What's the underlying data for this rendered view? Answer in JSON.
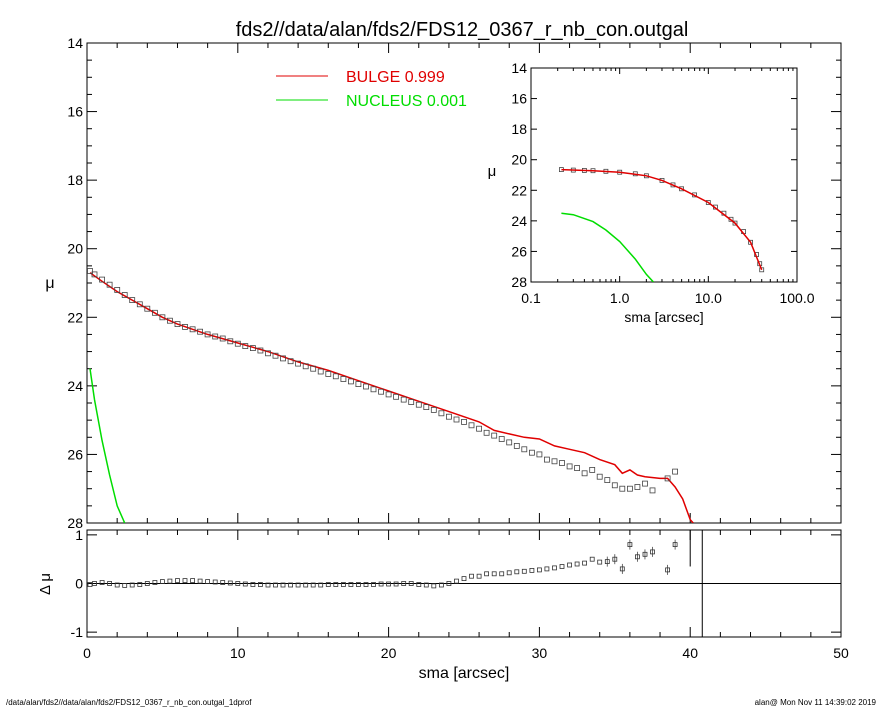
{
  "chart_data": {
    "type": "scatter",
    "title": "fds2//data/alan/fds2/FDS12_0367_r_nb_con.outgal",
    "footer_left": "/data/alan/fds2//data/alan/fds2/FDS12_0367_r_nb_con.outgal_1dprof",
    "footer_right": "alan@  Mon Nov 11 14:39:02 2019",
    "colors": {
      "bulge": "#e00000",
      "nucleus": "#00dd00",
      "points": "#444444",
      "axes": "#000000"
    },
    "main_panel": {
      "xlabel": "",
      "ylabel": "μ",
      "xlim": [
        0,
        50
      ],
      "ylim": [
        28,
        14
      ],
      "yticks": [
        14,
        16,
        18,
        20,
        22,
        24,
        26,
        28
      ],
      "legend": {
        "placement": "top-center",
        "entries": [
          {
            "label": "BULGE  0.999",
            "color": "#e00000"
          },
          {
            "label": "NUCLEUS  0.001",
            "color": "#00dd00"
          }
        ]
      },
      "series": [
        {
          "name": "BULGE  0.999",
          "kind": "line",
          "color": "#e00000",
          "x": [
            0.2,
            1,
            2,
            3,
            4,
            5,
            6,
            7,
            8,
            10,
            12,
            14,
            16,
            18,
            20,
            22,
            24,
            26,
            27,
            28,
            29,
            30,
            31,
            32,
            33,
            34,
            35,
            35.5,
            36,
            36.5,
            37,
            38,
            38.5,
            39,
            39.5,
            40,
            40.2
          ],
          "y": [
            20.7,
            20.95,
            21.25,
            21.5,
            21.75,
            22.0,
            22.2,
            22.35,
            22.5,
            22.75,
            23.0,
            23.3,
            23.55,
            23.85,
            24.15,
            24.45,
            24.75,
            25.05,
            25.3,
            25.4,
            25.5,
            25.55,
            25.75,
            25.85,
            25.95,
            26.15,
            26.3,
            26.55,
            26.45,
            26.6,
            26.65,
            26.7,
            26.7,
            26.95,
            27.3,
            27.9,
            28.0
          ]
        },
        {
          "name": "NUCLEUS  0.001",
          "kind": "line",
          "color": "#00dd00",
          "x": [
            0.2,
            0.5,
            1.0,
            1.5,
            2.0,
            2.5
          ],
          "y": [
            23.5,
            24.4,
            25.6,
            26.6,
            27.5,
            28.0
          ]
        },
        {
          "name": "",
          "kind": "points",
          "color": "#444444",
          "x": [
            0.2,
            0.5,
            1,
            1.5,
            2,
            2.5,
            3,
            3.5,
            4,
            4.5,
            5,
            5.5,
            6,
            6.5,
            7,
            7.5,
            8,
            8.5,
            9,
            9.5,
            10,
            10.5,
            11,
            11.5,
            12,
            12.5,
            13,
            13.5,
            14,
            14.5,
            15,
            15.5,
            16,
            16.5,
            17,
            17.5,
            18,
            18.5,
            19,
            19.5,
            20,
            20.5,
            21,
            21.5,
            22,
            22.5,
            23,
            23.5,
            24,
            24.5,
            25,
            25.5,
            26,
            26.5,
            27,
            27.5,
            28,
            28.5,
            29,
            29.5,
            30,
            30.5,
            31,
            31.5,
            32,
            32.5,
            33,
            33.5,
            34,
            34.5,
            35,
            35.5,
            36,
            36.5,
            37,
            37.5,
            38.5,
            39
          ],
          "y": [
            20.65,
            20.75,
            20.9,
            21.05,
            21.2,
            21.35,
            21.5,
            21.62,
            21.75,
            21.87,
            22.0,
            22.1,
            22.2,
            22.28,
            22.35,
            22.42,
            22.5,
            22.56,
            22.62,
            22.7,
            22.77,
            22.84,
            22.9,
            22.97,
            23.05,
            23.12,
            23.2,
            23.28,
            23.35,
            23.43,
            23.5,
            23.58,
            23.65,
            23.72,
            23.8,
            23.87,
            23.95,
            24.02,
            24.1,
            24.17,
            24.25,
            24.32,
            24.4,
            24.47,
            24.55,
            24.62,
            24.7,
            24.8,
            24.9,
            24.98,
            25.05,
            25.15,
            25.25,
            25.37,
            25.45,
            25.55,
            25.65,
            25.75,
            25.85,
            25.95,
            26.0,
            26.15,
            26.2,
            26.25,
            26.35,
            26.4,
            26.55,
            26.45,
            26.65,
            26.75,
            26.9,
            27.0,
            27.0,
            26.95,
            26.85,
            27.05,
            26.7,
            26.5
          ]
        }
      ]
    },
    "residual_panel": {
      "xlabel": "sma [arcsec]",
      "ylabel": "Δ μ",
      "xlim": [
        0,
        50
      ],
      "ylim": [
        -1.1,
        1.1
      ],
      "xticks": [
        0,
        10,
        20,
        30,
        40,
        50
      ],
      "yticks": [
        1,
        0,
        -1
      ],
      "vertical_line_x": 40.8,
      "series": [
        {
          "name": "",
          "kind": "points",
          "x": [
            0.2,
            0.5,
            1,
            1.5,
            2,
            2.5,
            3,
            3.5,
            4,
            4.5,
            5,
            5.5,
            6,
            6.5,
            7,
            7.5,
            8,
            8.5,
            9,
            9.5,
            10,
            10.5,
            11,
            11.5,
            12,
            12.5,
            13,
            13.5,
            14,
            14.5,
            15,
            15.5,
            16,
            16.5,
            17,
            17.5,
            18,
            18.5,
            19,
            19.5,
            20,
            20.5,
            21,
            21.5,
            22,
            22.5,
            23,
            23.5,
            24,
            24.5,
            25,
            25.5,
            26,
            26.5,
            27,
            27.5,
            28,
            28.5,
            29,
            29.5,
            30,
            30.5,
            31,
            31.5,
            32,
            32.5,
            33,
            33.5,
            34,
            34.5,
            35,
            35.5,
            36,
            36.5,
            37,
            37.5,
            38.5,
            39
          ],
          "y": [
            -0.02,
            0.0,
            0.02,
            0.0,
            -0.03,
            -0.04,
            -0.03,
            -0.02,
            0.0,
            0.02,
            0.04,
            0.05,
            0.06,
            0.06,
            0.06,
            0.05,
            0.04,
            0.03,
            0.02,
            0.01,
            0.0,
            -0.01,
            -0.02,
            -0.02,
            -0.03,
            -0.03,
            -0.03,
            -0.03,
            -0.03,
            -0.03,
            -0.03,
            -0.03,
            -0.02,
            -0.02,
            -0.02,
            -0.02,
            -0.02,
            -0.02,
            -0.02,
            -0.01,
            -0.01,
            -0.01,
            0.0,
            0.0,
            -0.02,
            -0.03,
            -0.05,
            -0.03,
            0.0,
            0.05,
            0.1,
            0.15,
            0.15,
            0.2,
            0.2,
            0.2,
            0.22,
            0.24,
            0.25,
            0.27,
            0.28,
            0.3,
            0.32,
            0.35,
            0.38,
            0.4,
            0.42,
            0.5,
            0.44,
            0.45,
            0.5,
            0.3,
            0.8,
            0.55,
            0.6,
            0.65,
            0.28,
            0.8
          ]
        }
      ]
    },
    "inset_panel": {
      "xlabel": "sma [arcsec]",
      "ylabel": "μ",
      "xscale": "log",
      "xlim": [
        0.1,
        100
      ],
      "ylim": [
        28,
        14
      ],
      "xticks": [
        "0.1",
        "1.0",
        "10.0",
        "100.0"
      ],
      "yticks": [
        14,
        16,
        18,
        20,
        22,
        24,
        26,
        28
      ],
      "series": [
        {
          "name": "",
          "kind": "points",
          "x": [
            0.22,
            0.3,
            0.4,
            0.5,
            0.7,
            1.0,
            1.5,
            2,
            3,
            4,
            5,
            7,
            10,
            12,
            15,
            18,
            20,
            25,
            30,
            35,
            38,
            40
          ],
          "y": [
            20.65,
            20.68,
            20.7,
            20.72,
            20.76,
            20.82,
            20.92,
            21.05,
            21.35,
            21.65,
            21.9,
            22.3,
            22.8,
            23.1,
            23.5,
            23.9,
            24.15,
            24.7,
            25.4,
            26.2,
            26.8,
            27.2
          ]
        },
        {
          "name": "",
          "kind": "line",
          "color": "#e00000",
          "x": [
            0.22,
            0.5,
            1,
            2,
            3,
            5,
            10,
            20,
            30,
            40
          ],
          "y": [
            20.65,
            20.72,
            20.82,
            21.05,
            21.35,
            21.9,
            22.8,
            24.15,
            25.4,
            27.2
          ]
        },
        {
          "name": "",
          "kind": "line",
          "color": "#00dd00",
          "x": [
            0.22,
            0.3,
            0.5,
            0.7,
            1.0,
            1.5,
            2.0,
            2.4
          ],
          "y": [
            23.5,
            23.6,
            24.05,
            24.6,
            25.35,
            26.5,
            27.5,
            28.0
          ]
        }
      ]
    }
  }
}
